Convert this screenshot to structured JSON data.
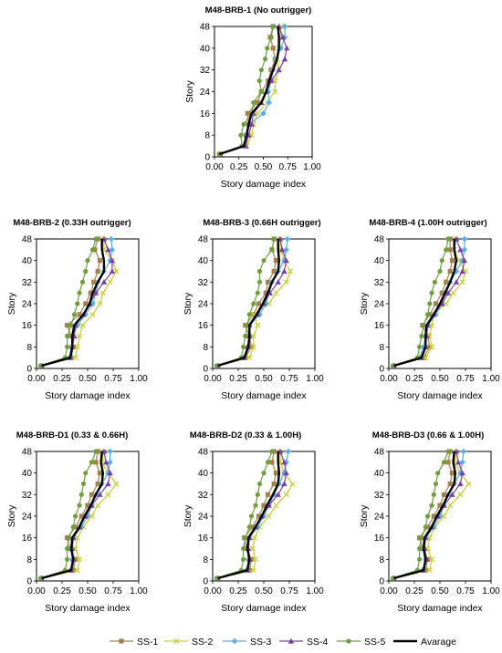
{
  "chart_data": {
    "type": "line",
    "xlabel": "Story damage index",
    "ylabel": "Story",
    "xlim": [
      0,
      1
    ],
    "ylim": [
      0,
      48
    ],
    "xticks": [
      "0.00",
      "0.25",
      "0.50",
      "0.75",
      "1.00"
    ],
    "yticks": [
      "0",
      "8",
      "16",
      "24",
      "32",
      "40",
      "48"
    ],
    "legend": {
      "placement": "bottom",
      "entries": [
        {
          "name": "SS-1",
          "color": "#a5814a",
          "marker": "square"
        },
        {
          "name": "SS-2",
          "color": "#c9cf2e",
          "marker": "x"
        },
        {
          "name": "SS-3",
          "color": "#55aee6",
          "marker": "diamond"
        },
        {
          "name": "SS-4",
          "color": "#7a3fa6",
          "marker": "triangle"
        },
        {
          "name": "SS-5",
          "color": "#6f9e3c",
          "marker": "circle"
        },
        {
          "name": "Avarage",
          "color": "#000000",
          "marker": "none"
        }
      ]
    },
    "stories": [
      1,
      4,
      8,
      12,
      16,
      20,
      24,
      28,
      32,
      36,
      40,
      44,
      48
    ],
    "panels": [
      {
        "title": "M48-BRB-1 (No outrigger)",
        "series": [
          {
            "name": "SS-1",
            "values": [
              0.06,
              0.3,
              0.32,
              0.35,
              0.34,
              0.44,
              0.48,
              0.55,
              0.58,
              0.62,
              0.6,
              0.57,
              0.6
            ]
          },
          {
            "name": "SS-2",
            "values": [
              0.05,
              0.33,
              0.38,
              0.4,
              0.44,
              0.54,
              0.62,
              0.62,
              0.66,
              0.64,
              0.66,
              0.68,
              0.68
            ]
          },
          {
            "name": "SS-3",
            "values": [
              0.05,
              0.31,
              0.33,
              0.36,
              0.5,
              0.56,
              0.55,
              0.58,
              0.6,
              0.63,
              0.68,
              0.72,
              0.72
            ]
          },
          {
            "name": "SS-4",
            "values": [
              0.06,
              0.32,
              0.35,
              0.38,
              0.4,
              0.48,
              0.53,
              0.58,
              0.66,
              0.72,
              0.74,
              0.7,
              0.66
            ]
          },
          {
            "name": "SS-5",
            "values": [
              0.05,
              0.28,
              0.27,
              0.3,
              0.38,
              0.4,
              0.48,
              0.46,
              0.48,
              0.52,
              0.54,
              0.58,
              0.6
            ]
          },
          {
            "name": "Avarage",
            "values": [
              0.05,
              0.3,
              0.33,
              0.35,
              0.38,
              0.48,
              0.53,
              0.56,
              0.6,
              0.64,
              0.66,
              0.66,
              0.65
            ]
          }
        ]
      },
      {
        "title": "M48-BRB-2 (0.33H outrigger)",
        "series": [
          {
            "name": "SS-1",
            "values": [
              0.05,
              0.34,
              0.36,
              0.34,
              0.3,
              0.42,
              0.48,
              0.53,
              0.56,
              0.6,
              0.62,
              0.57,
              0.6
            ]
          },
          {
            "name": "SS-2",
            "values": [
              0.05,
              0.38,
              0.4,
              0.42,
              0.45,
              0.55,
              0.62,
              0.65,
              0.72,
              0.78,
              0.74,
              0.66,
              0.66
            ]
          },
          {
            "name": "SS-3",
            "values": [
              0.05,
              0.32,
              0.34,
              0.36,
              0.4,
              0.48,
              0.55,
              0.58,
              0.6,
              0.66,
              0.72,
              0.74,
              0.73
            ]
          },
          {
            "name": "SS-4",
            "values": [
              0.05,
              0.33,
              0.35,
              0.37,
              0.38,
              0.46,
              0.52,
              0.58,
              0.66,
              0.74,
              0.74,
              0.7,
              0.66
            ]
          },
          {
            "name": "SS-5",
            "values": [
              0.04,
              0.28,
              0.3,
              0.3,
              0.34,
              0.37,
              0.4,
              0.42,
              0.45,
              0.48,
              0.5,
              0.55,
              0.58
            ]
          },
          {
            "name": "Avarage",
            "values": [
              0.05,
              0.33,
              0.35,
              0.35,
              0.37,
              0.46,
              0.52,
              0.55,
              0.6,
              0.66,
              0.66,
              0.64,
              0.64
            ]
          }
        ]
      },
      {
        "title": "M48-BRB-3 (0.66H outrigger)",
        "series": [
          {
            "name": "SS-1",
            "values": [
              0.05,
              0.32,
              0.38,
              0.36,
              0.32,
              0.4,
              0.45,
              0.52,
              0.54,
              0.6,
              0.62,
              0.58,
              0.6
            ]
          },
          {
            "name": "SS-2",
            "values": [
              0.05,
              0.36,
              0.4,
              0.4,
              0.44,
              0.4,
              0.55,
              0.62,
              0.72,
              0.76,
              0.7,
              0.66,
              0.66
            ]
          },
          {
            "name": "SS-3",
            "values": [
              0.05,
              0.3,
              0.34,
              0.36,
              0.36,
              0.46,
              0.52,
              0.55,
              0.58,
              0.64,
              0.7,
              0.72,
              0.73
            ]
          },
          {
            "name": "SS-4",
            "values": [
              0.05,
              0.31,
              0.34,
              0.36,
              0.36,
              0.44,
              0.5,
              0.56,
              0.64,
              0.7,
              0.72,
              0.68,
              0.66
            ]
          },
          {
            "name": "SS-5",
            "values": [
              0.04,
              0.28,
              0.3,
              0.32,
              0.34,
              0.36,
              0.4,
              0.44,
              0.46,
              0.46,
              0.5,
              0.58,
              0.6
            ]
          },
          {
            "name": "Avarage",
            "values": [
              0.05,
              0.31,
              0.35,
              0.36,
              0.36,
              0.43,
              0.49,
              0.54,
              0.58,
              0.64,
              0.65,
              0.64,
              0.64
            ]
          }
        ]
      },
      {
        "title": "M48-BRB-4 (1.00H outrigger)",
        "series": [
          {
            "name": "SS-1",
            "values": [
              0.05,
              0.34,
              0.4,
              0.38,
              0.33,
              0.4,
              0.46,
              0.52,
              0.56,
              0.6,
              0.62,
              0.6,
              0.6
            ]
          },
          {
            "name": "SS-2",
            "values": [
              0.05,
              0.36,
              0.42,
              0.4,
              0.42,
              0.44,
              0.56,
              0.63,
              0.72,
              0.75,
              0.68,
              0.64,
              0.66
            ]
          },
          {
            "name": "SS-3",
            "values": [
              0.05,
              0.3,
              0.34,
              0.36,
              0.38,
              0.46,
              0.52,
              0.55,
              0.6,
              0.66,
              0.72,
              0.74,
              0.74
            ]
          },
          {
            "name": "SS-4",
            "values": [
              0.05,
              0.32,
              0.36,
              0.37,
              0.38,
              0.44,
              0.52,
              0.58,
              0.66,
              0.72,
              0.74,
              0.7,
              0.66
            ]
          },
          {
            "name": "SS-5",
            "values": [
              0.04,
              0.28,
              0.3,
              0.32,
              0.34,
              0.38,
              0.4,
              0.42,
              0.45,
              0.5,
              0.52,
              0.56,
              0.58
            ]
          },
          {
            "name": "Avarage",
            "values": [
              0.05,
              0.32,
              0.36,
              0.36,
              0.37,
              0.44,
              0.5,
              0.55,
              0.6,
              0.64,
              0.66,
              0.64,
              0.64
            ]
          }
        ]
      },
      {
        "title": "M48-BRB-D1 (0.33 & 0.66H)",
        "series": [
          {
            "name": "SS-1",
            "values": [
              0.05,
              0.36,
              0.38,
              0.32,
              0.3,
              0.38,
              0.44,
              0.5,
              0.54,
              0.6,
              0.62,
              0.58,
              0.6
            ]
          },
          {
            "name": "SS-2",
            "values": [
              0.05,
              0.4,
              0.42,
              0.38,
              0.4,
              0.46,
              0.54,
              0.6,
              0.7,
              0.78,
              0.7,
              0.64,
              0.66
            ]
          },
          {
            "name": "SS-3",
            "values": [
              0.05,
              0.33,
              0.35,
              0.34,
              0.36,
              0.44,
              0.5,
              0.54,
              0.58,
              0.64,
              0.7,
              0.72,
              0.72
            ]
          },
          {
            "name": "SS-4",
            "values": [
              0.05,
              0.34,
              0.36,
              0.35,
              0.36,
              0.42,
              0.48,
              0.54,
              0.62,
              0.7,
              0.72,
              0.68,
              0.66
            ]
          },
          {
            "name": "SS-5",
            "values": [
              0.04,
              0.28,
              0.3,
              0.3,
              0.32,
              0.36,
              0.38,
              0.42,
              0.44,
              0.46,
              0.48,
              0.54,
              0.58
            ]
          },
          {
            "name": "Avarage",
            "values": [
              0.05,
              0.34,
              0.36,
              0.34,
              0.35,
              0.42,
              0.47,
              0.53,
              0.58,
              0.64,
              0.65,
              0.63,
              0.64
            ]
          }
        ]
      },
      {
        "title": "M48-BRB-D2 (0.33 & 1.00H)",
        "series": [
          {
            "name": "SS-1",
            "values": [
              0.05,
              0.36,
              0.38,
              0.33,
              0.31,
              0.39,
              0.45,
              0.5,
              0.54,
              0.6,
              0.62,
              0.58,
              0.6
            ]
          },
          {
            "name": "SS-2",
            "values": [
              0.05,
              0.4,
              0.42,
              0.39,
              0.41,
              0.46,
              0.55,
              0.62,
              0.72,
              0.78,
              0.7,
              0.66,
              0.66
            ]
          },
          {
            "name": "SS-3",
            "values": [
              0.05,
              0.33,
              0.35,
              0.34,
              0.36,
              0.44,
              0.5,
              0.55,
              0.6,
              0.65,
              0.7,
              0.72,
              0.74
            ]
          },
          {
            "name": "SS-4",
            "values": [
              0.05,
              0.34,
              0.36,
              0.35,
              0.36,
              0.42,
              0.48,
              0.55,
              0.64,
              0.7,
              0.72,
              0.7,
              0.66
            ]
          },
          {
            "name": "SS-5",
            "values": [
              0.04,
              0.28,
              0.3,
              0.3,
              0.32,
              0.36,
              0.38,
              0.42,
              0.44,
              0.46,
              0.5,
              0.54,
              0.58
            ]
          },
          {
            "name": "Avarage",
            "values": [
              0.05,
              0.34,
              0.36,
              0.34,
              0.35,
              0.42,
              0.48,
              0.53,
              0.59,
              0.64,
              0.65,
              0.64,
              0.64
            ]
          }
        ]
      },
      {
        "title": "M48-BRB-D3 (0.66 & 1.00H)",
        "series": [
          {
            "name": "SS-1",
            "values": [
              0.05,
              0.36,
              0.38,
              0.33,
              0.3,
              0.38,
              0.44,
              0.5,
              0.54,
              0.6,
              0.62,
              0.58,
              0.6
            ]
          },
          {
            "name": "SS-2",
            "values": [
              0.05,
              0.4,
              0.42,
              0.38,
              0.4,
              0.45,
              0.54,
              0.6,
              0.7,
              0.78,
              0.7,
              0.64,
              0.66
            ]
          },
          {
            "name": "SS-3",
            "values": [
              0.05,
              0.33,
              0.36,
              0.34,
              0.36,
              0.44,
              0.5,
              0.54,
              0.58,
              0.64,
              0.7,
              0.72,
              0.73
            ]
          },
          {
            "name": "SS-4",
            "values": [
              0.05,
              0.34,
              0.37,
              0.35,
              0.36,
              0.42,
              0.48,
              0.54,
              0.62,
              0.7,
              0.72,
              0.68,
              0.66
            ]
          },
          {
            "name": "SS-5",
            "values": [
              0.04,
              0.28,
              0.3,
              0.3,
              0.32,
              0.36,
              0.38,
              0.42,
              0.44,
              0.46,
              0.48,
              0.54,
              0.58
            ]
          },
          {
            "name": "Avarage",
            "values": [
              0.05,
              0.34,
              0.36,
              0.34,
              0.35,
              0.42,
              0.47,
              0.53,
              0.58,
              0.64,
              0.65,
              0.63,
              0.64
            ]
          }
        ]
      }
    ]
  }
}
